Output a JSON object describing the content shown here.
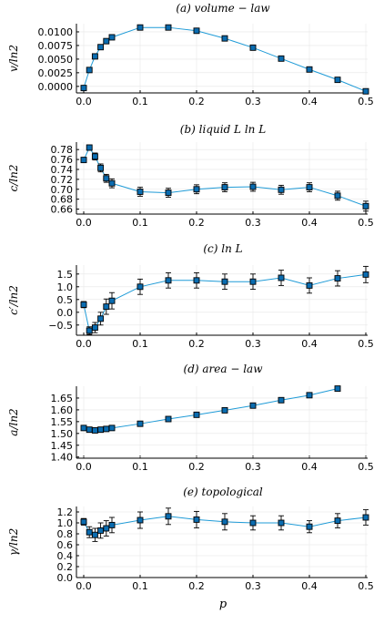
{
  "x_label": "p",
  "chart_data": [
    {
      "type": "scatter",
      "title": "(a) volume − law",
      "ylabel": "v/ln2",
      "xlim": [
        0,
        0.5
      ],
      "ylim": [
        -0.0012,
        0.0115
      ],
      "xticks": [
        "0.0",
        "0.1",
        "0.2",
        "0.3",
        "0.4",
        "0.5"
      ],
      "yticks": [
        0.0,
        0.0025,
        0.005,
        0.0075,
        0.01
      ],
      "ytick_labels": [
        "0.0000",
        "0.0025",
        "0.0050",
        "0.0075",
        "0.0100"
      ],
      "x": [
        0.0,
        0.01,
        0.02,
        0.03,
        0.04,
        0.05,
        0.1,
        0.15,
        0.2,
        0.25,
        0.3,
        0.35,
        0.4,
        0.45,
        0.5
      ],
      "y": [
        -0.0003,
        0.003,
        0.0055,
        0.0072,
        0.0083,
        0.009,
        0.0108,
        0.0108,
        0.0102,
        0.0088,
        0.0071,
        0.0051,
        0.0031,
        0.0012,
        -0.0009
      ],
      "err": [],
      "grid": true
    },
    {
      "type": "scatter",
      "title": "(b) liquid L ln L",
      "ylabel": "c/ln2",
      "xlim": [
        0,
        0.5
      ],
      "ylim": [
        0.65,
        0.795
      ],
      "xticks": [
        "0.0",
        "0.1",
        "0.2",
        "0.3",
        "0.4",
        "0.5"
      ],
      "yticks": [
        0.66,
        0.68,
        0.7,
        0.72,
        0.74,
        0.76,
        0.78
      ],
      "ytick_labels": [
        "0.66",
        "0.68",
        "0.70",
        "0.72",
        "0.74",
        "0.76",
        "0.78"
      ],
      "x": [
        0.0,
        0.01,
        0.02,
        0.03,
        0.04,
        0.05,
        0.1,
        0.15,
        0.2,
        0.25,
        0.3,
        0.35,
        0.4,
        0.45,
        0.5
      ],
      "y": [
        0.759,
        0.784,
        0.766,
        0.743,
        0.722,
        0.712,
        0.695,
        0.693,
        0.7,
        0.704,
        0.705,
        0.699,
        0.704,
        0.687,
        0.666
      ],
      "err": [
        0.0,
        0.005,
        0.007,
        0.008,
        0.008,
        0.009,
        0.009,
        0.009,
        0.009,
        0.009,
        0.009,
        0.009,
        0.009,
        0.009,
        0.01
      ],
      "grid": true
    },
    {
      "type": "scatter",
      "title": "(c) ln L",
      "ylabel": "c′/ln2",
      "xlim": [
        0,
        0.5
      ],
      "ylim": [
        -0.9,
        1.85
      ],
      "xticks": [
        "0.0",
        "0.1",
        "0.2",
        "0.3",
        "0.4",
        "0.5"
      ],
      "yticks": [
        -0.5,
        0.0,
        0.5,
        1.0,
        1.5
      ],
      "ytick_labels": [
        "−0.5",
        "0.0",
        "0.5",
        "1.0",
        "1.5"
      ],
      "x": [
        0.0,
        0.01,
        0.02,
        0.03,
        0.04,
        0.05,
        0.1,
        0.15,
        0.2,
        0.25,
        0.3,
        0.35,
        0.4,
        0.45,
        0.5
      ],
      "y": [
        0.3,
        -0.72,
        -0.6,
        -0.25,
        0.22,
        0.45,
        1.0,
        1.25,
        1.25,
        1.2,
        1.2,
        1.35,
        1.05,
        1.33,
        1.48
      ],
      "err": [
        0.12,
        0.15,
        0.2,
        0.25,
        0.3,
        0.32,
        0.3,
        0.3,
        0.3,
        0.3,
        0.3,
        0.3,
        0.3,
        0.3,
        0.32
      ],
      "grid": true
    },
    {
      "type": "scatter",
      "title": "(d) area − law",
      "ylabel": "a/ln2",
      "xlim": [
        0,
        0.5
      ],
      "ylim": [
        1.395,
        1.7
      ],
      "xticks": [
        "0.0",
        "0.1",
        "0.2",
        "0.3",
        "0.4",
        "0.5"
      ],
      "yticks": [
        1.4,
        1.45,
        1.5,
        1.55,
        1.6,
        1.65
      ],
      "ytick_labels": [
        "1.40",
        "1.45",
        "1.50",
        "1.55",
        "1.60",
        "1.65"
      ],
      "x": [
        0.0,
        0.01,
        0.02,
        0.03,
        0.04,
        0.05,
        0.1,
        0.15,
        0.2,
        0.25,
        0.3,
        0.35,
        0.4,
        0.45
      ],
      "y": [
        1.523,
        1.516,
        1.513,
        1.516,
        1.519,
        1.523,
        1.541,
        1.561,
        1.579,
        1.598,
        1.618,
        1.641,
        1.662,
        1.69
      ],
      "err": [],
      "grid": true
    },
    {
      "type": "scatter",
      "title": "(e) topological",
      "ylabel": "γ/ln2",
      "xlim": [
        0,
        0.5
      ],
      "ylim": [
        0.0,
        1.3
      ],
      "xticks": [
        "0.0",
        "0.1",
        "0.2",
        "0.3",
        "0.4",
        "0.5"
      ],
      "yticks": [
        0.0,
        0.2,
        0.4,
        0.6,
        0.8,
        1.0,
        1.2
      ],
      "ytick_labels": [
        "0.0",
        "0.2",
        "0.4",
        "0.6",
        "0.8",
        "1.0",
        "1.2"
      ],
      "x": [
        0.0,
        0.01,
        0.02,
        0.03,
        0.04,
        0.05,
        0.1,
        0.15,
        0.2,
        0.25,
        0.3,
        0.35,
        0.4,
        0.45,
        0.5
      ],
      "y": [
        1.02,
        0.83,
        0.78,
        0.86,
        0.9,
        0.96,
        1.05,
        1.12,
        1.06,
        1.02,
        1.0,
        1.0,
        0.93,
        1.04,
        1.1
      ],
      "err": [
        0.06,
        0.1,
        0.12,
        0.14,
        0.14,
        0.14,
        0.15,
        0.15,
        0.15,
        0.15,
        0.13,
        0.13,
        0.11,
        0.13,
        0.14
      ],
      "grid": true
    }
  ]
}
